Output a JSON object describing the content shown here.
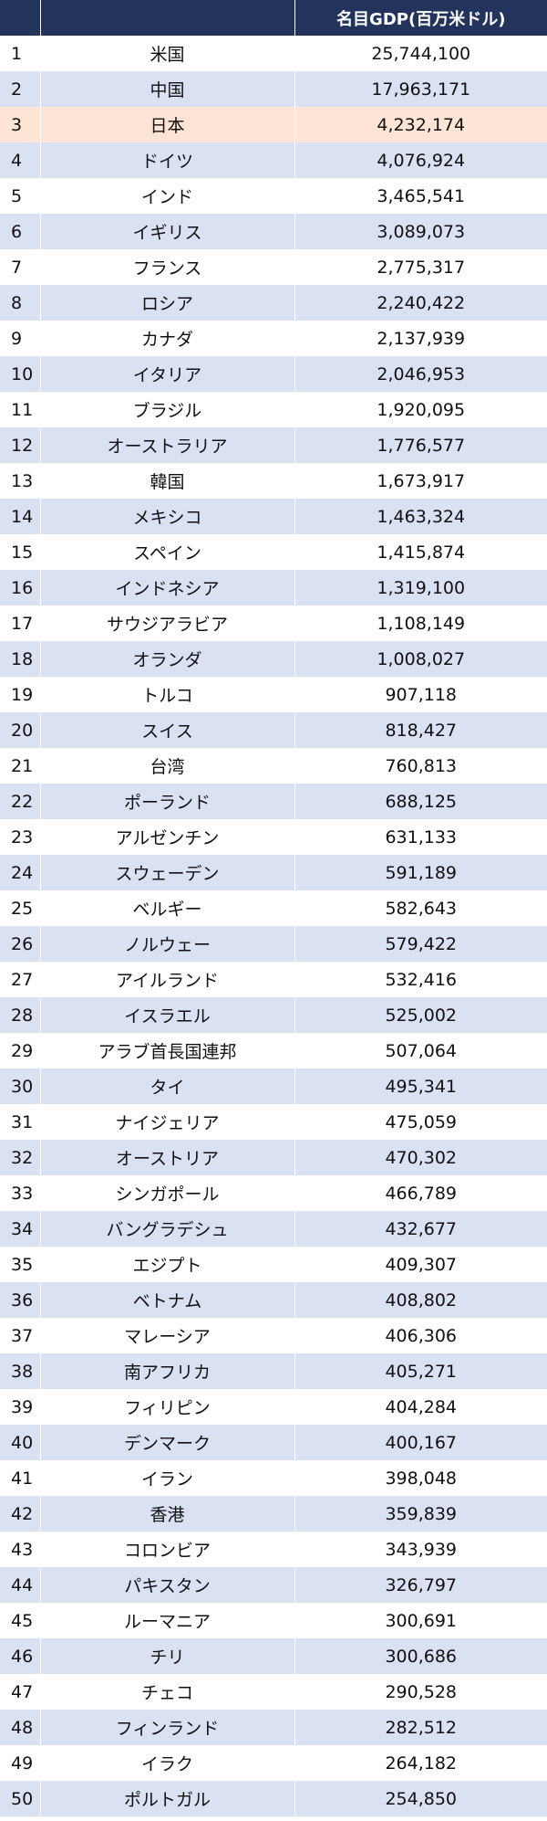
{
  "table": {
    "headers": [
      "",
      "",
      "名目GDP(百万米ドル)"
    ],
    "highlight_color": "#fde4d4",
    "header_color": "#22345c",
    "stripe_color": "#d9e1f2",
    "rows": [
      {
        "rank": "1",
        "country": "米国",
        "value": "25,744,100"
      },
      {
        "rank": "2",
        "country": "中国",
        "value": "17,963,171"
      },
      {
        "rank": "3",
        "country": "日本",
        "value": "4,232,174",
        "highlight": true
      },
      {
        "rank": "4",
        "country": "ドイツ",
        "value": "4,076,924"
      },
      {
        "rank": "5",
        "country": "インド",
        "value": "3,465,541"
      },
      {
        "rank": "6",
        "country": "イギリス",
        "value": "3,089,073"
      },
      {
        "rank": "7",
        "country": "フランス",
        "value": "2,775,317"
      },
      {
        "rank": "8",
        "country": "ロシア",
        "value": "2,240,422"
      },
      {
        "rank": "9",
        "country": "カナダ",
        "value": "2,137,939"
      },
      {
        "rank": "10",
        "country": "イタリア",
        "value": "2,046,953"
      },
      {
        "rank": "11",
        "country": "ブラジル",
        "value": "1,920,095"
      },
      {
        "rank": "12",
        "country": "オーストラリア",
        "value": "1,776,577"
      },
      {
        "rank": "13",
        "country": "韓国",
        "value": "1,673,917"
      },
      {
        "rank": "14",
        "country": "メキシコ",
        "value": "1,463,324"
      },
      {
        "rank": "15",
        "country": "スペイン",
        "value": "1,415,874"
      },
      {
        "rank": "16",
        "country": "インドネシア",
        "value": "1,319,100"
      },
      {
        "rank": "17",
        "country": "サウジアラビア",
        "value": "1,108,149"
      },
      {
        "rank": "18",
        "country": "オランダ",
        "value": "1,008,027"
      },
      {
        "rank": "19",
        "country": "トルコ",
        "value": "907,118"
      },
      {
        "rank": "20",
        "country": "スイス",
        "value": "818,427"
      },
      {
        "rank": "21",
        "country": "台湾",
        "value": "760,813"
      },
      {
        "rank": "22",
        "country": "ポーランド",
        "value": "688,125"
      },
      {
        "rank": "23",
        "country": "アルゼンチン",
        "value": "631,133"
      },
      {
        "rank": "24",
        "country": "スウェーデン",
        "value": "591,189"
      },
      {
        "rank": "25",
        "country": "ベルギー",
        "value": "582,643"
      },
      {
        "rank": "26",
        "country": "ノルウェー",
        "value": "579,422"
      },
      {
        "rank": "27",
        "country": "アイルランド",
        "value": "532,416"
      },
      {
        "rank": "28",
        "country": "イスラエル",
        "value": "525,002"
      },
      {
        "rank": "29",
        "country": "アラブ首長国連邦",
        "value": "507,064"
      },
      {
        "rank": "30",
        "country": "タイ",
        "value": "495,341"
      },
      {
        "rank": "31",
        "country": "ナイジェリア",
        "value": "475,059"
      },
      {
        "rank": "32",
        "country": "オーストリア",
        "value": "470,302"
      },
      {
        "rank": "33",
        "country": "シンガポール",
        "value": "466,789"
      },
      {
        "rank": "34",
        "country": "バングラデシュ",
        "value": "432,677"
      },
      {
        "rank": "35",
        "country": "エジプト",
        "value": "409,307"
      },
      {
        "rank": "36",
        "country": "ベトナム",
        "value": "408,802"
      },
      {
        "rank": "37",
        "country": "マレーシア",
        "value": "406,306"
      },
      {
        "rank": "38",
        "country": "南アフリカ",
        "value": "405,271"
      },
      {
        "rank": "39",
        "country": "フィリピン",
        "value": "404,284"
      },
      {
        "rank": "40",
        "country": "デンマーク",
        "value": "400,167"
      },
      {
        "rank": "41",
        "country": "イラン",
        "value": "398,048"
      },
      {
        "rank": "42",
        "country": "香港",
        "value": "359,839"
      },
      {
        "rank": "43",
        "country": "コロンビア",
        "value": "343,939"
      },
      {
        "rank": "44",
        "country": "パキスタン",
        "value": "326,797"
      },
      {
        "rank": "45",
        "country": "ルーマニア",
        "value": "300,691"
      },
      {
        "rank": "46",
        "country": "チリ",
        "value": "300,686"
      },
      {
        "rank": "47",
        "country": "チェコ",
        "value": "290,528"
      },
      {
        "rank": "48",
        "country": "フィンランド",
        "value": "282,512"
      },
      {
        "rank": "49",
        "country": "イラク",
        "value": "264,182"
      },
      {
        "rank": "50",
        "country": "ポルトガル",
        "value": "254,850"
      }
    ]
  }
}
